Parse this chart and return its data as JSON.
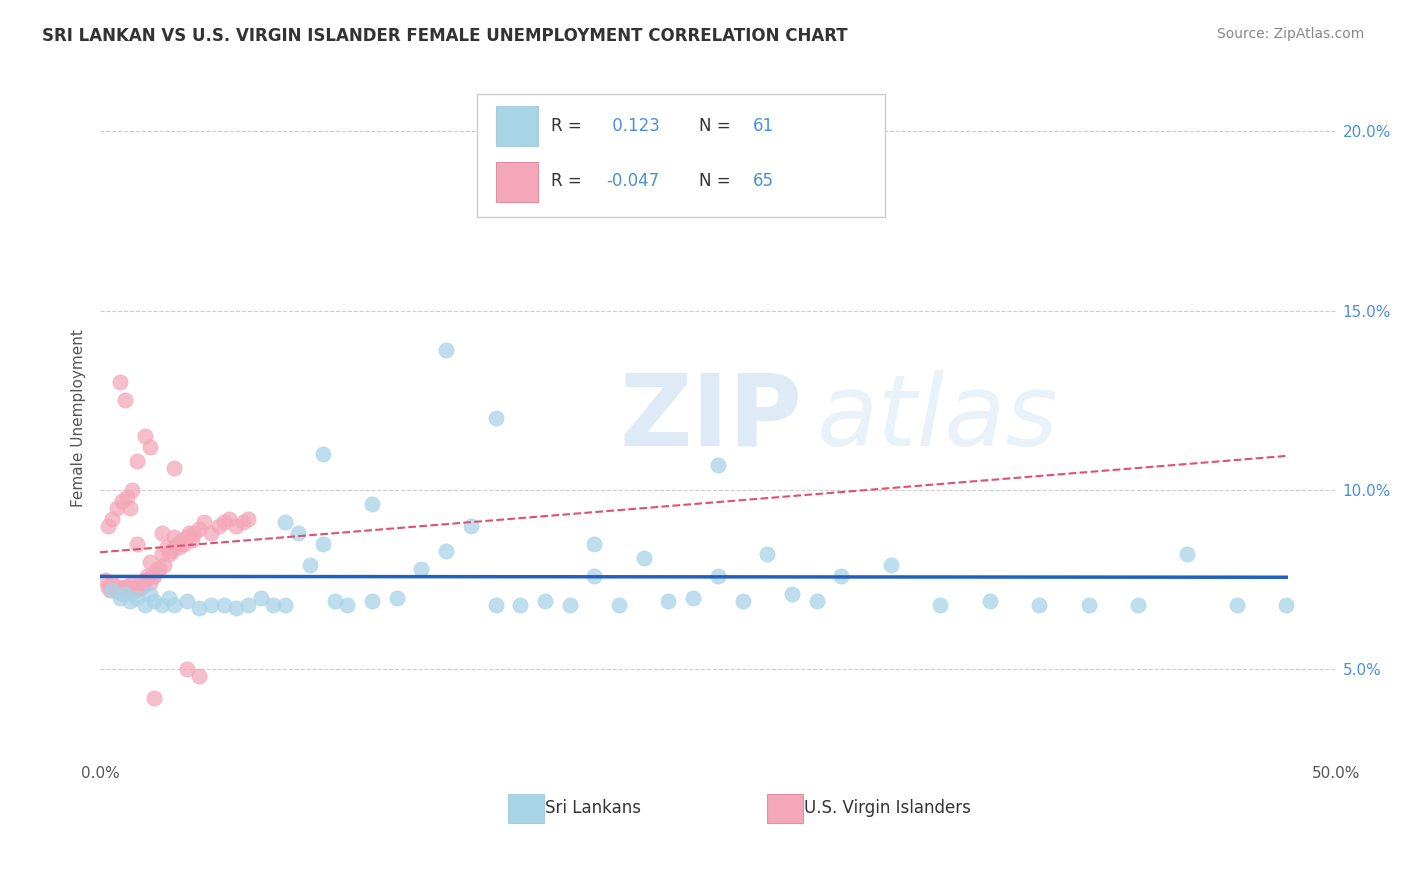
{
  "title": "SRI LANKAN VS U.S. VIRGIN ISLANDER FEMALE UNEMPLOYMENT CORRELATION CHART",
  "source": "Source: ZipAtlas.com",
  "ylabel": "Female Unemployment",
  "xlim": [
    0.0,
    0.5
  ],
  "ylim": [
    0.025,
    0.215
  ],
  "xticks": [
    0.0,
    0.1,
    0.2,
    0.3,
    0.4,
    0.5
  ],
  "xticklabels": [
    "0.0%",
    "",
    "",
    "",
    "",
    "50.0%"
  ],
  "yticks": [
    0.05,
    0.1,
    0.15,
    0.2
  ],
  "yticklabels": [
    "5.0%",
    "10.0%",
    "15.0%",
    "20.0%"
  ],
  "sri_lankan_color": "#a8d4e8",
  "sri_lankan_edge": "#a8d4e8",
  "virgin_islander_color": "#f4a7b9",
  "virgin_islander_edge": "#f4a7b9",
  "trendline_sri_color": "#2060c0",
  "trendline_vi_color": "#e05070",
  "R_sri": 0.123,
  "N_sri": 61,
  "R_vi": -0.047,
  "N_vi": 65,
  "legend_sri_label": "Sri Lankans",
  "legend_vi_label": "U.S. Virgin Islanders",
  "watermark_zip": "ZIP",
  "watermark_atlas": "atlas",
  "background_color": "#ffffff",
  "grid_color": "#cccccc",
  "tick_color": "#4a90d9",
  "sri_x": [
    0.005,
    0.008,
    0.01,
    0.012,
    0.015,
    0.018,
    0.02,
    0.022,
    0.025,
    0.028,
    0.03,
    0.035,
    0.04,
    0.045,
    0.05,
    0.055,
    0.06,
    0.065,
    0.07,
    0.075,
    0.08,
    0.085,
    0.09,
    0.095,
    0.1,
    0.11,
    0.12,
    0.13,
    0.14,
    0.15,
    0.16,
    0.17,
    0.18,
    0.19,
    0.2,
    0.21,
    0.22,
    0.23,
    0.24,
    0.25,
    0.26,
    0.27,
    0.28,
    0.29,
    0.3,
    0.32,
    0.34,
    0.36,
    0.38,
    0.4,
    0.42,
    0.44,
    0.46,
    0.48,
    0.075,
    0.09,
    0.11,
    0.14,
    0.16,
    0.2,
    0.25
  ],
  "sri_y": [
    0.072,
    0.07,
    0.071,
    0.069,
    0.07,
    0.068,
    0.071,
    0.069,
    0.068,
    0.07,
    0.068,
    0.069,
    0.067,
    0.068,
    0.068,
    0.067,
    0.068,
    0.07,
    0.068,
    0.068,
    0.088,
    0.079,
    0.085,
    0.069,
    0.068,
    0.069,
    0.07,
    0.078,
    0.083,
    0.09,
    0.068,
    0.068,
    0.069,
    0.068,
    0.076,
    0.068,
    0.081,
    0.069,
    0.07,
    0.076,
    0.069,
    0.082,
    0.071,
    0.069,
    0.076,
    0.079,
    0.068,
    0.069,
    0.068,
    0.068,
    0.068,
    0.082,
    0.068,
    0.068,
    0.091,
    0.11,
    0.096,
    0.139,
    0.12,
    0.085,
    0.107
  ],
  "vi_x": [
    0.002,
    0.003,
    0.004,
    0.005,
    0.006,
    0.007,
    0.008,
    0.009,
    0.01,
    0.011,
    0.012,
    0.013,
    0.014,
    0.015,
    0.016,
    0.017,
    0.018,
    0.019,
    0.02,
    0.021,
    0.022,
    0.023,
    0.024,
    0.025,
    0.026,
    0.027,
    0.028,
    0.029,
    0.03,
    0.031,
    0.032,
    0.033,
    0.034,
    0.035,
    0.036,
    0.037,
    0.038,
    0.04,
    0.042,
    0.045,
    0.048,
    0.05,
    0.052,
    0.055,
    0.058,
    0.06,
    0.003,
    0.005,
    0.007,
    0.009,
    0.011,
    0.013,
    0.015,
    0.018,
    0.02,
    0.025,
    0.03,
    0.01,
    0.008,
    0.012,
    0.015,
    0.02,
    0.022,
    0.035,
    0.04
  ],
  "vi_y": [
    0.075,
    0.073,
    0.072,
    0.074,
    0.073,
    0.072,
    0.073,
    0.071,
    0.073,
    0.073,
    0.072,
    0.074,
    0.073,
    0.072,
    0.073,
    0.073,
    0.075,
    0.076,
    0.074,
    0.076,
    0.076,
    0.078,
    0.078,
    0.082,
    0.079,
    0.084,
    0.082,
    0.083,
    0.087,
    0.085,
    0.084,
    0.086,
    0.085,
    0.087,
    0.088,
    0.086,
    0.088,
    0.089,
    0.091,
    0.088,
    0.09,
    0.091,
    0.092,
    0.09,
    0.091,
    0.092,
    0.09,
    0.092,
    0.095,
    0.097,
    0.098,
    0.1,
    0.108,
    0.115,
    0.112,
    0.088,
    0.106,
    0.125,
    0.13,
    0.095,
    0.085,
    0.08,
    0.042,
    0.05,
    0.048
  ]
}
